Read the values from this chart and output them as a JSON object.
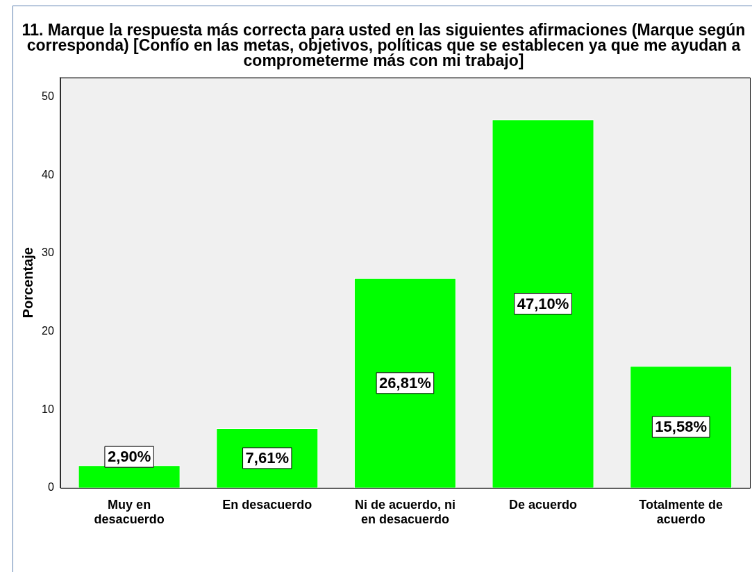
{
  "chart_data": {
    "type": "bar",
    "title": "11. Marque la respuesta más correcta para usted en las siguientes afirmaciones (Marque según corresponda) [Confío en las metas, objetivos, políticas que se establecen ya que me ayudan a comprometerme más con mi trabajo]",
    "ylabel": "Porcentaje",
    "categories": [
      "Muy en desacuerdo",
      "En desacuerdo",
      "Ni de acuerdo, ni en desacuerdo",
      "De acuerdo",
      "Totalmente de acuerdo"
    ],
    "values": [
      2.9,
      7.61,
      26.81,
      47.1,
      15.58
    ],
    "value_labels": [
      "2,90%",
      "7,61%",
      "26,81%",
      "47,10%",
      "15,58%"
    ],
    "color": "#00ff00",
    "ylim": [
      0,
      52.5
    ],
    "yticks": [
      0,
      10,
      20,
      30,
      40,
      50
    ],
    "grid": false,
    "legend": false
  }
}
